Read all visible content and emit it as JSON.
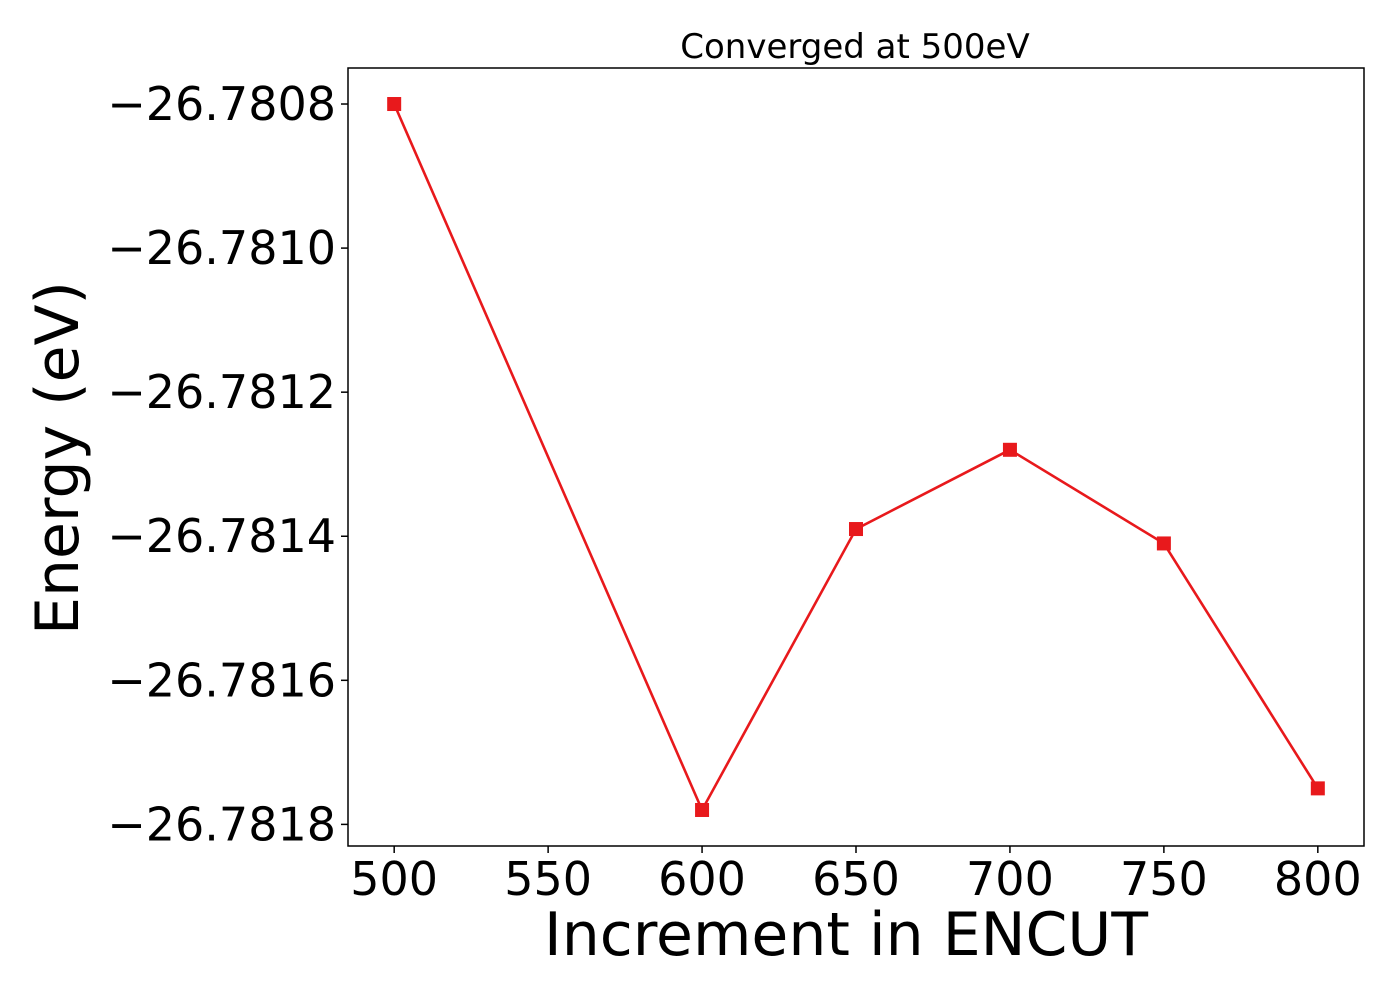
{
  "chart_data": {
    "type": "line",
    "title": "Converged at 500eV",
    "xlabel": "Increment in ENCUT",
    "ylabel": "Energy (eV)",
    "x": [
      500,
      600,
      650,
      700,
      750,
      800
    ],
    "series": [
      {
        "values": [
          -26.7808,
          -26.78178,
          -26.78139,
          -26.78128,
          -26.78141,
          -26.78175
        ],
        "color": "#e8191c",
        "marker": "square"
      }
    ],
    "xticks": [
      500,
      550,
      600,
      650,
      700,
      750,
      800
    ],
    "xtick_labels": [
      "500",
      "550",
      "600",
      "650",
      "700",
      "750",
      "800"
    ],
    "yticks": [
      -26.7808,
      -26.781,
      -26.7812,
      -26.7814,
      -26.7816,
      -26.7818
    ],
    "ytick_labels": [
      "−26.7808",
      "−26.7810",
      "−26.7812",
      "−26.7814",
      "−26.7816",
      "−26.7818"
    ],
    "xlim": [
      485,
      815
    ],
    "ylim": [
      -26.78183,
      -26.78075
    ],
    "grid": false,
    "legend": false
  }
}
